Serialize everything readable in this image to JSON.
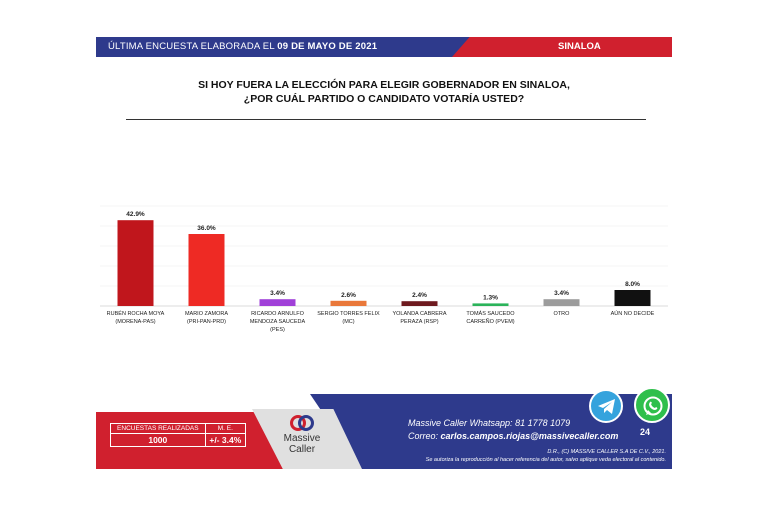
{
  "header": {
    "left_text": "ÚLTIMA ENCUESTA ELABORADA EL",
    "date": "09 DE MAYO DE 2021",
    "region": "SINALOA"
  },
  "question": {
    "line1": "SI HOY FUERA LA ELECCIÓN PARA ELEGIR GOBERNADOR EN SINALOA,",
    "line2": "¿POR CUÁL PARTIDO O CANDIDATO VOTARÍA USTED?"
  },
  "chart_data": {
    "type": "bar",
    "categories": [
      [
        "RUBÉN ROCHA MOYA",
        "(MORENA-PAS)"
      ],
      [
        "MARIO ZAMORA",
        "(PRI-PAN-PRD)"
      ],
      [
        "RICARDO ARNULFO",
        "MENDOZA SAUCEDA",
        "(PES)"
      ],
      [
        "SERGIO TORRES FELIX",
        "(MC)"
      ],
      [
        "YOLANDA CABRERA",
        "PERAZA (RSP)"
      ],
      [
        "TOMÁS SAUCEDO",
        "CARREÑO (PVEM)"
      ],
      [
        "OTRO"
      ],
      [
        "AÚN NO DECIDE"
      ]
    ],
    "values": [
      42.9,
      36.0,
      3.4,
      2.6,
      2.4,
      1.3,
      3.4,
      8.0
    ],
    "data_labels": [
      "42.9%",
      "36.0%",
      "3.4%",
      "2.6%",
      "2.4%",
      "1.3%",
      "3.4%",
      "8.0%"
    ],
    "colors": [
      "#c0161c",
      "#ee2a24",
      "#a040d8",
      "#e9783a",
      "#6e1a1f",
      "#2bb35a",
      "#9c9c9c",
      "#111111"
    ],
    "ylim": [
      0,
      50
    ],
    "grid": true,
    "legend": "none"
  },
  "footer": {
    "stats": {
      "surveys_label": "ENCUESTAS REALIZADAS",
      "surveys_value": "1000",
      "me_label": "M. E.",
      "me_value": "+/- 3.4%"
    },
    "logo": {
      "line1": "Massive",
      "line2": "Caller"
    },
    "whatsapp_label": "Massive Caller Whatsapp:",
    "whatsapp_number": "81 1778 1079",
    "email_label": "Correo:",
    "email": "carlos.campos.riojas@massivecaller.com",
    "copyright": "D.R., (C) MASSIVE CALLER S.A DE C.V., 2021.",
    "notice": "Se autoriza la reproducción al hacer referencia del autor, salvo aplique veda electoral al contenido.",
    "badge": "24",
    "icons": {
      "telegram": "telegram-icon",
      "whatsapp": "whatsapp-icon"
    }
  }
}
